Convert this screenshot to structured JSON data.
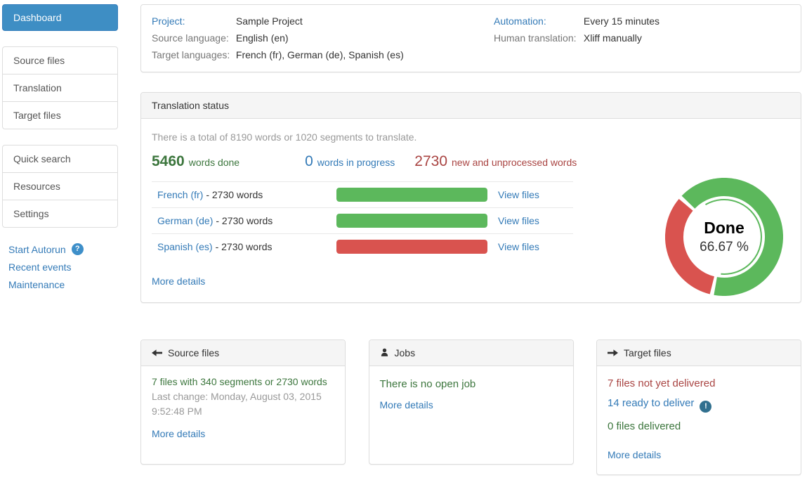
{
  "colors": {
    "accent-blue": "#3e8ec4",
    "link-blue": "#337ab7",
    "success-green": "#3c763d",
    "bar-green": "#5cb85c",
    "bar-red": "#d9534f",
    "danger-red": "#a94442",
    "info-dark": "#31708f",
    "help-blue": "#3e8fc9",
    "muted-gray": "#999999",
    "text-dark": "#333333",
    "panel-border": "#dddddd",
    "panel-heading-bg": "#f5f5f5"
  },
  "icons": {
    "help_glyph": "?",
    "info_glyph": "!"
  },
  "sidebar": {
    "dashboard": "Dashboard",
    "group1": [
      "Source files",
      "Translation",
      "Target files"
    ],
    "group2": [
      "Quick search",
      "Resources",
      "Settings"
    ],
    "links": [
      "Start Autorun",
      "Recent events",
      "Maintenance"
    ]
  },
  "project_info": {
    "project_label": "Project:",
    "project_value": "Sample Project",
    "source_language_label": "Source language:",
    "source_language_value": "English (en)",
    "target_languages_label": "Target languages:",
    "target_languages_value": "French (fr), German (de), Spanish (es)",
    "automation_label": "Automation:",
    "automation_value": "Every 15 minutes",
    "human_translation_label": "Human translation:",
    "human_translation_value": "Xliff manually"
  },
  "translation_status": {
    "title": "Translation status",
    "summary": "There is a total of 8190 words or 1020 segments to translate.",
    "stats": [
      {
        "value": "5460",
        "label": "words done"
      },
      {
        "value": "0",
        "label": "words in progress"
      },
      {
        "value": "2730",
        "label": "new and unprocessed words"
      }
    ],
    "languages": [
      {
        "name": "French (fr)",
        "words": "- 2730 words",
        "progress": 100,
        "bar_color": "#5cb85c",
        "link": "View files"
      },
      {
        "name": "German (de)",
        "words": "- 2730 words",
        "progress": 100,
        "bar_color": "#5cb85c",
        "link": "View files"
      },
      {
        "name": "Spanish (es)",
        "words": "- 2730 words",
        "progress": 100,
        "bar_color": "#d9534f",
        "link": "View files"
      }
    ],
    "more_details": "More details",
    "donut": {
      "label": "Done",
      "percent_text": "66.67 %",
      "done_percent": 66.67,
      "remaining_percent": 33.33,
      "done_color": "#5cb85c",
      "remaining_color": "#d9534f"
    }
  },
  "chart_data": {
    "type": "pie",
    "title": "Done",
    "categories": [
      "done",
      "not done"
    ],
    "values": [
      66.67,
      33.33
    ],
    "colors": [
      "#5cb85c",
      "#d9534f"
    ],
    "center_label": "Done",
    "center_value": "66.67 %"
  },
  "cards": {
    "source_files": {
      "title": "Source files",
      "summary": "7 files with 340 segments or 2730 words",
      "last_change": "Last change: Monday, August 03, 2015 9:52:48 PM",
      "more": "More details"
    },
    "jobs": {
      "title": "Jobs",
      "status": "There is no open job",
      "more": "More details"
    },
    "target_files": {
      "title": "Target files",
      "not_delivered": "7 files not yet delivered",
      "ready": "14 ready to deliver",
      "delivered": "0 files delivered",
      "more": "More details"
    }
  }
}
